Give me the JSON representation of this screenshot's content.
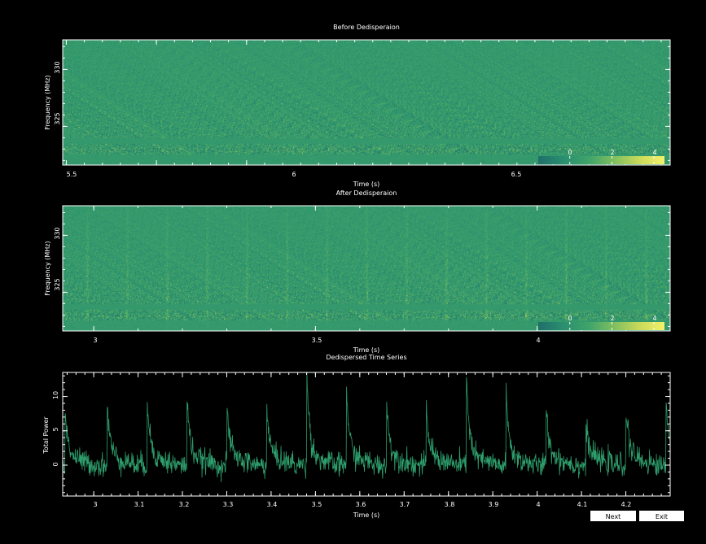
{
  "buttons": {
    "next_label": "Next",
    "exit_label": "Exit"
  },
  "colors": {
    "background": "#000000",
    "foreground": "#ffffff",
    "series": "#2e9e6c",
    "colormap": [
      "#1f6f6a",
      "#2a8f6f",
      "#3fa36a",
      "#7fbf5f",
      "#c9d95a",
      "#f4f16a"
    ]
  },
  "chart_data": [
    {
      "type": "heatmap",
      "title": "Before Dedisperaion",
      "xlabel": "Time (s)",
      "ylabel": "Frequency (MHz)",
      "xlim": [
        5.48,
        8.85
      ],
      "ylim": [
        321.6,
        332.6
      ],
      "xticks": [
        5.5,
        6,
        6.5
      ],
      "xtick_labels": [
        "5.5",
        "6",
        "6.5"
      ],
      "yticks": [
        325,
        330
      ],
      "ytick_labels": [
        "325",
        "330"
      ],
      "colorbar": {
        "placement": "bottom-right",
        "range": [
          -1.5,
          4.5
        ],
        "ticks": [
          0,
          2,
          4
        ],
        "tick_labels": [
          "0",
          "2",
          "4"
        ]
      }
    },
    {
      "type": "heatmap",
      "title": "After Dedisperaion",
      "xlabel": "Time (s)",
      "ylabel": "Frequency (MHz)",
      "xlim": [
        2.93,
        4.3
      ],
      "ylim": [
        321.6,
        332.6
      ],
      "xticks": [
        3,
        3.5,
        4
      ],
      "xtick_labels": [
        "3",
        "3.5",
        "4"
      ],
      "yticks": [
        325,
        330
      ],
      "ytick_labels": [
        "325",
        "330"
      ],
      "colorbar": {
        "placement": "bottom-right",
        "range": [
          -1.5,
          4.5
        ],
        "ticks": [
          0,
          2,
          4
        ],
        "tick_labels": [
          "0",
          "2",
          "4"
        ]
      }
    },
    {
      "type": "line",
      "title": "Dedispersed Time Series",
      "xlabel": "Time (s)",
      "ylabel": "Total Power",
      "xlim": [
        2.93,
        4.3
      ],
      "ylim": [
        -4.5,
        13.5
      ],
      "xticks": [
        3,
        3.1,
        3.2,
        3.3,
        3.4,
        3.5,
        3.6,
        3.7,
        3.8,
        3.9,
        4,
        4.1,
        4.2
      ],
      "xtick_labels": [
        "3",
        "3.1",
        "3.2",
        "3.3",
        "3.4",
        "3.5",
        "3.6",
        "3.7",
        "3.8",
        "3.9",
        "4",
        "4.1",
        "4.2"
      ],
      "yticks": [
        0,
        5,
        10
      ],
      "ytick_labels": [
        "0",
        "5",
        "10"
      ],
      "baseline": 0,
      "noise_level": 1.2,
      "pulses": [
        {
          "t": 2.935,
          "peak": 6
        },
        {
          "t": 3.03,
          "peak": 7
        },
        {
          "t": 3.12,
          "peak": 8.5
        },
        {
          "t": 3.21,
          "peak": 8
        },
        {
          "t": 3.3,
          "peak": 7
        },
        {
          "t": 3.39,
          "peak": 6.5
        },
        {
          "t": 3.48,
          "peak": 13
        },
        {
          "t": 3.57,
          "peak": 9.5
        },
        {
          "t": 3.66,
          "peak": 7.5
        },
        {
          "t": 3.75,
          "peak": 6
        },
        {
          "t": 3.84,
          "peak": 13
        },
        {
          "t": 3.93,
          "peak": 8
        },
        {
          "t": 4.02,
          "peak": 6.5
        },
        {
          "t": 4.11,
          "peak": 3.5
        },
        {
          "t": 4.2,
          "peak": 6.5
        },
        {
          "t": 4.29,
          "peak": 9
        }
      ]
    }
  ]
}
